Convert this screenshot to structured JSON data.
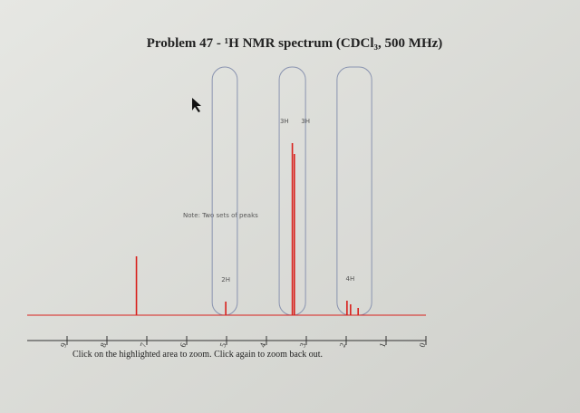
{
  "chart_data": {
    "type": "spectrum",
    "title": "Problem 47 - ¹H NMR spectrum (CDCl₃, 500 MHz)",
    "note": "Note: Two sets of peaks",
    "footer": "Click on the highlighted area to zoom. Click again to zoom back out.",
    "x": [
      7.26,
      5.02,
      3.35,
      3.3,
      1.98,
      1.89,
      1.7
    ],
    "values": [
      65,
      15,
      190,
      178,
      16,
      12,
      8
    ],
    "color": "#d8201c",
    "xlim": [
      10,
      0
    ],
    "xticks": [
      9,
      8,
      7,
      6,
      5,
      4,
      3,
      2,
      1,
      0
    ],
    "ylim": [
      0,
      200
    ],
    "integrations": [
      {
        "label": "2H",
        "x": 5.02
      },
      {
        "label": "3H",
        "x": 3.55
      },
      {
        "label": "3H",
        "x": 3.02
      },
      {
        "label": "4H",
        "x": 1.9
      }
    ],
    "zoom_regions": [
      [
        5.36,
        4.73
      ],
      [
        3.68,
        3.02
      ],
      [
        2.23,
        1.36
      ]
    ]
  }
}
